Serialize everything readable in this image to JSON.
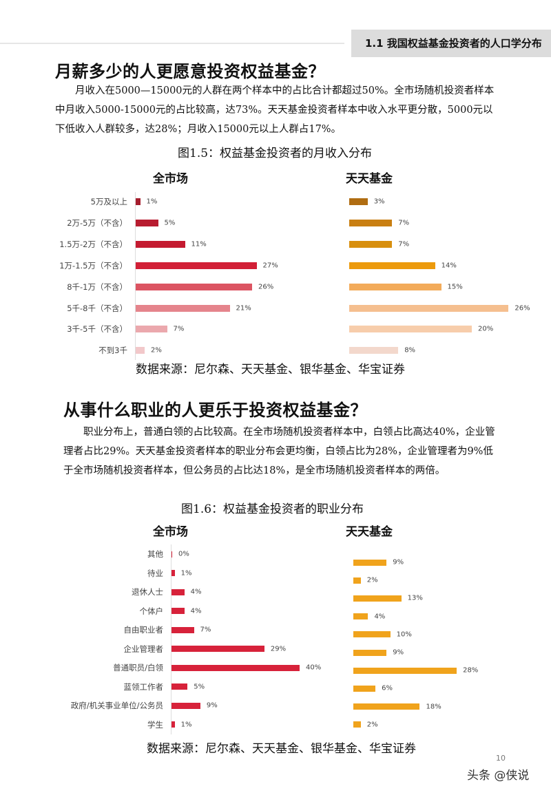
{
  "header": {
    "section": "1.1 我国权益基金投资者的人口学分布"
  },
  "section1": {
    "heading": "月薪多少的人更愿意投资权益基金？",
    "paragraph": "月收入在5000—15000元的人群在两个样本中的占比合计都超过50%。全市场随机投资者样本中月收入5000-15000元的占比较高，达73%。天天基金投资者样本中收入水平更分散，5000元以下低收入人群较多，达28%；月收入15000元以上人群占17%。",
    "caption": "图1.5：权益基金投资者的月收入分布",
    "source": "数据来源：尼尔森、天天基金、银华基金、华宝证券"
  },
  "section2": {
    "heading": "从事什么职业的人更乐于投资权益基金？",
    "paragraph": "职业分布上，普通白领的占比较高。在全市场随机投资者样本中，白领占比高达40%，企业管理者占比29%。天天基金投资者样本的职业分布会更均衡，白领占比为28%，企业管理者为9%低于全市场随机投资者样本，但公务员的占比达18%，是全市场随机投资者样本的两倍。",
    "caption": "图1.6：权益基金投资者的职业分布",
    "source": "数据来源：尼尔森、天天基金、银华基金、华宝证券"
  },
  "page_number": "10",
  "watermark": "头条 @侠说",
  "chart_data": [
    {
      "type": "bar",
      "orientation": "horizontal",
      "title": "全市场",
      "unit": "%",
      "categories": [
        "5万及以上",
        "2万-5万（不含）",
        "1.5万-2万（不含）",
        "1万-1.5万（不含）",
        "8千-1万（不含）",
        "5千-8千（不含）",
        "3千-5千（不含）",
        "不到3千"
      ],
      "values": [
        1,
        5,
        11,
        27,
        26,
        21,
        7,
        2
      ],
      "colors": [
        "#a51d2d",
        "#b81c30",
        "#c41a30",
        "#d21f36",
        "#dc5462",
        "#e5848c",
        "#eba8ad",
        "#f2c8ca"
      ]
    },
    {
      "type": "bar",
      "orientation": "horizontal",
      "title": "天天基金",
      "unit": "%",
      "categories": [
        "5万及以上",
        "2万-5万（不含）",
        "1.5万-2万（不含）",
        "1万-1.5万（不含）",
        "8千-1万（不含）",
        "5千-8千（不含）",
        "3千-5千（不含）",
        "不到3千"
      ],
      "values": [
        3,
        7,
        7,
        14,
        15,
        26,
        20,
        8
      ],
      "colors": [
        "#b06d12",
        "#c97f12",
        "#d88f0e",
        "#ec9a0c",
        "#f3ab5a",
        "#f5bf8f",
        "#f7cdab",
        "#f3d8cc"
      ]
    },
    {
      "type": "bar",
      "orientation": "horizontal",
      "title": "全市场",
      "unit": "%",
      "categories": [
        "其他",
        "待业",
        "退休人士",
        "个体户",
        "自由职业者",
        "企业管理者",
        "普通职员/白领",
        "蓝领工作者",
        "政府/机关事业单位/公务员",
        "学生"
      ],
      "values": [
        0,
        1,
        4,
        4,
        7,
        29,
        40,
        5,
        9,
        1
      ],
      "colors": [
        "#d7223a"
      ]
    },
    {
      "type": "bar",
      "orientation": "horizontal",
      "title": "天天基金",
      "unit": "%",
      "categories": [
        "其他",
        "待业",
        "退休人士",
        "个体户",
        "自由职业者",
        "企业管理者",
        "普通职员/白领",
        "蓝领工作者",
        "政府/机关事业单位/公务员",
        "学生"
      ],
      "values": [
        9,
        2,
        13,
        4,
        10,
        9,
        28,
        6,
        18,
        2
      ],
      "colors": [
        "#f0a31c"
      ]
    }
  ]
}
